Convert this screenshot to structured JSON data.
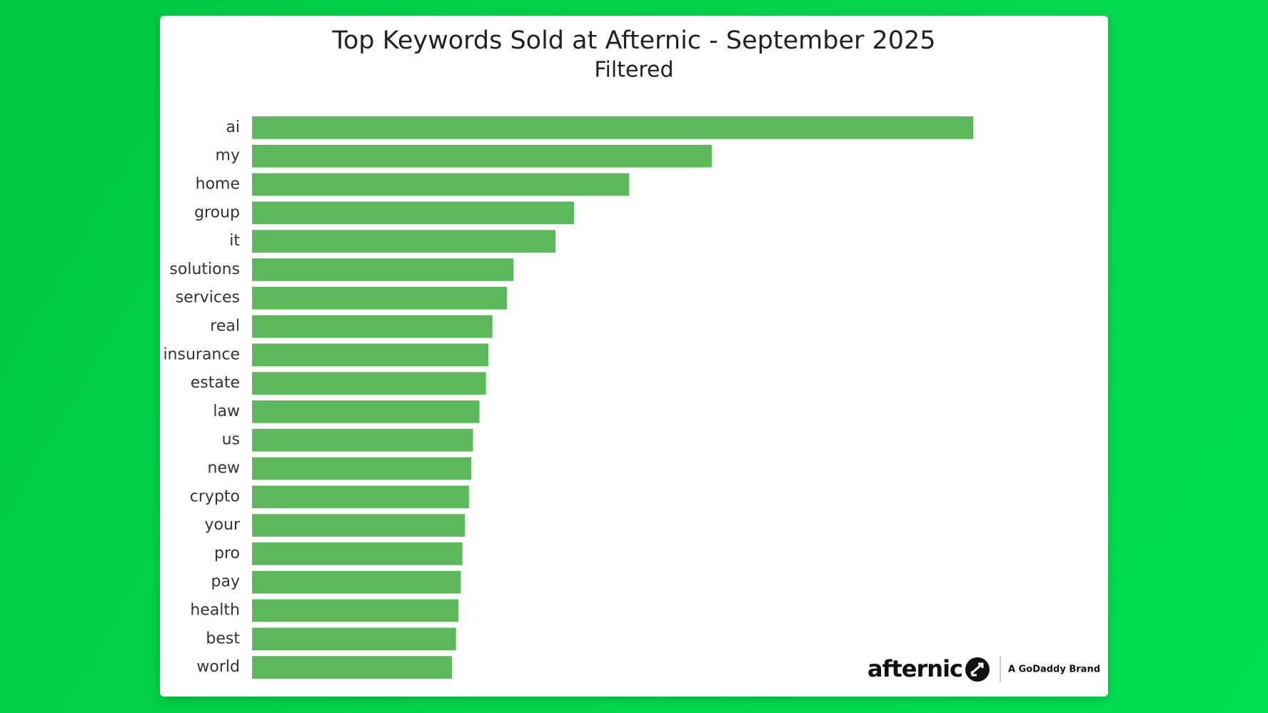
{
  "chart_data": {
    "type": "bar",
    "orientation": "horizontal",
    "title": "Top Keywords Sold at Afternic - September 2025",
    "subtitle": "Filtered",
    "categories": [
      "ai",
      "my",
      "home",
      "group",
      "it",
      "solutions",
      "services",
      "real",
      "insurance",
      "estate",
      "law",
      "us",
      "new",
      "crypto",
      "your",
      "pro",
      "pay",
      "health",
      "best",
      "world"
    ],
    "values": [
      891,
      568,
      466,
      398,
      375,
      323,
      315,
      297,
      292,
      289,
      281,
      273,
      271,
      268,
      263,
      260,
      258,
      255,
      252,
      247
    ],
    "color": "#5cb85a"
  },
  "logo": {
    "brand": "afternic",
    "tagline": "A GoDaddy Brand"
  }
}
